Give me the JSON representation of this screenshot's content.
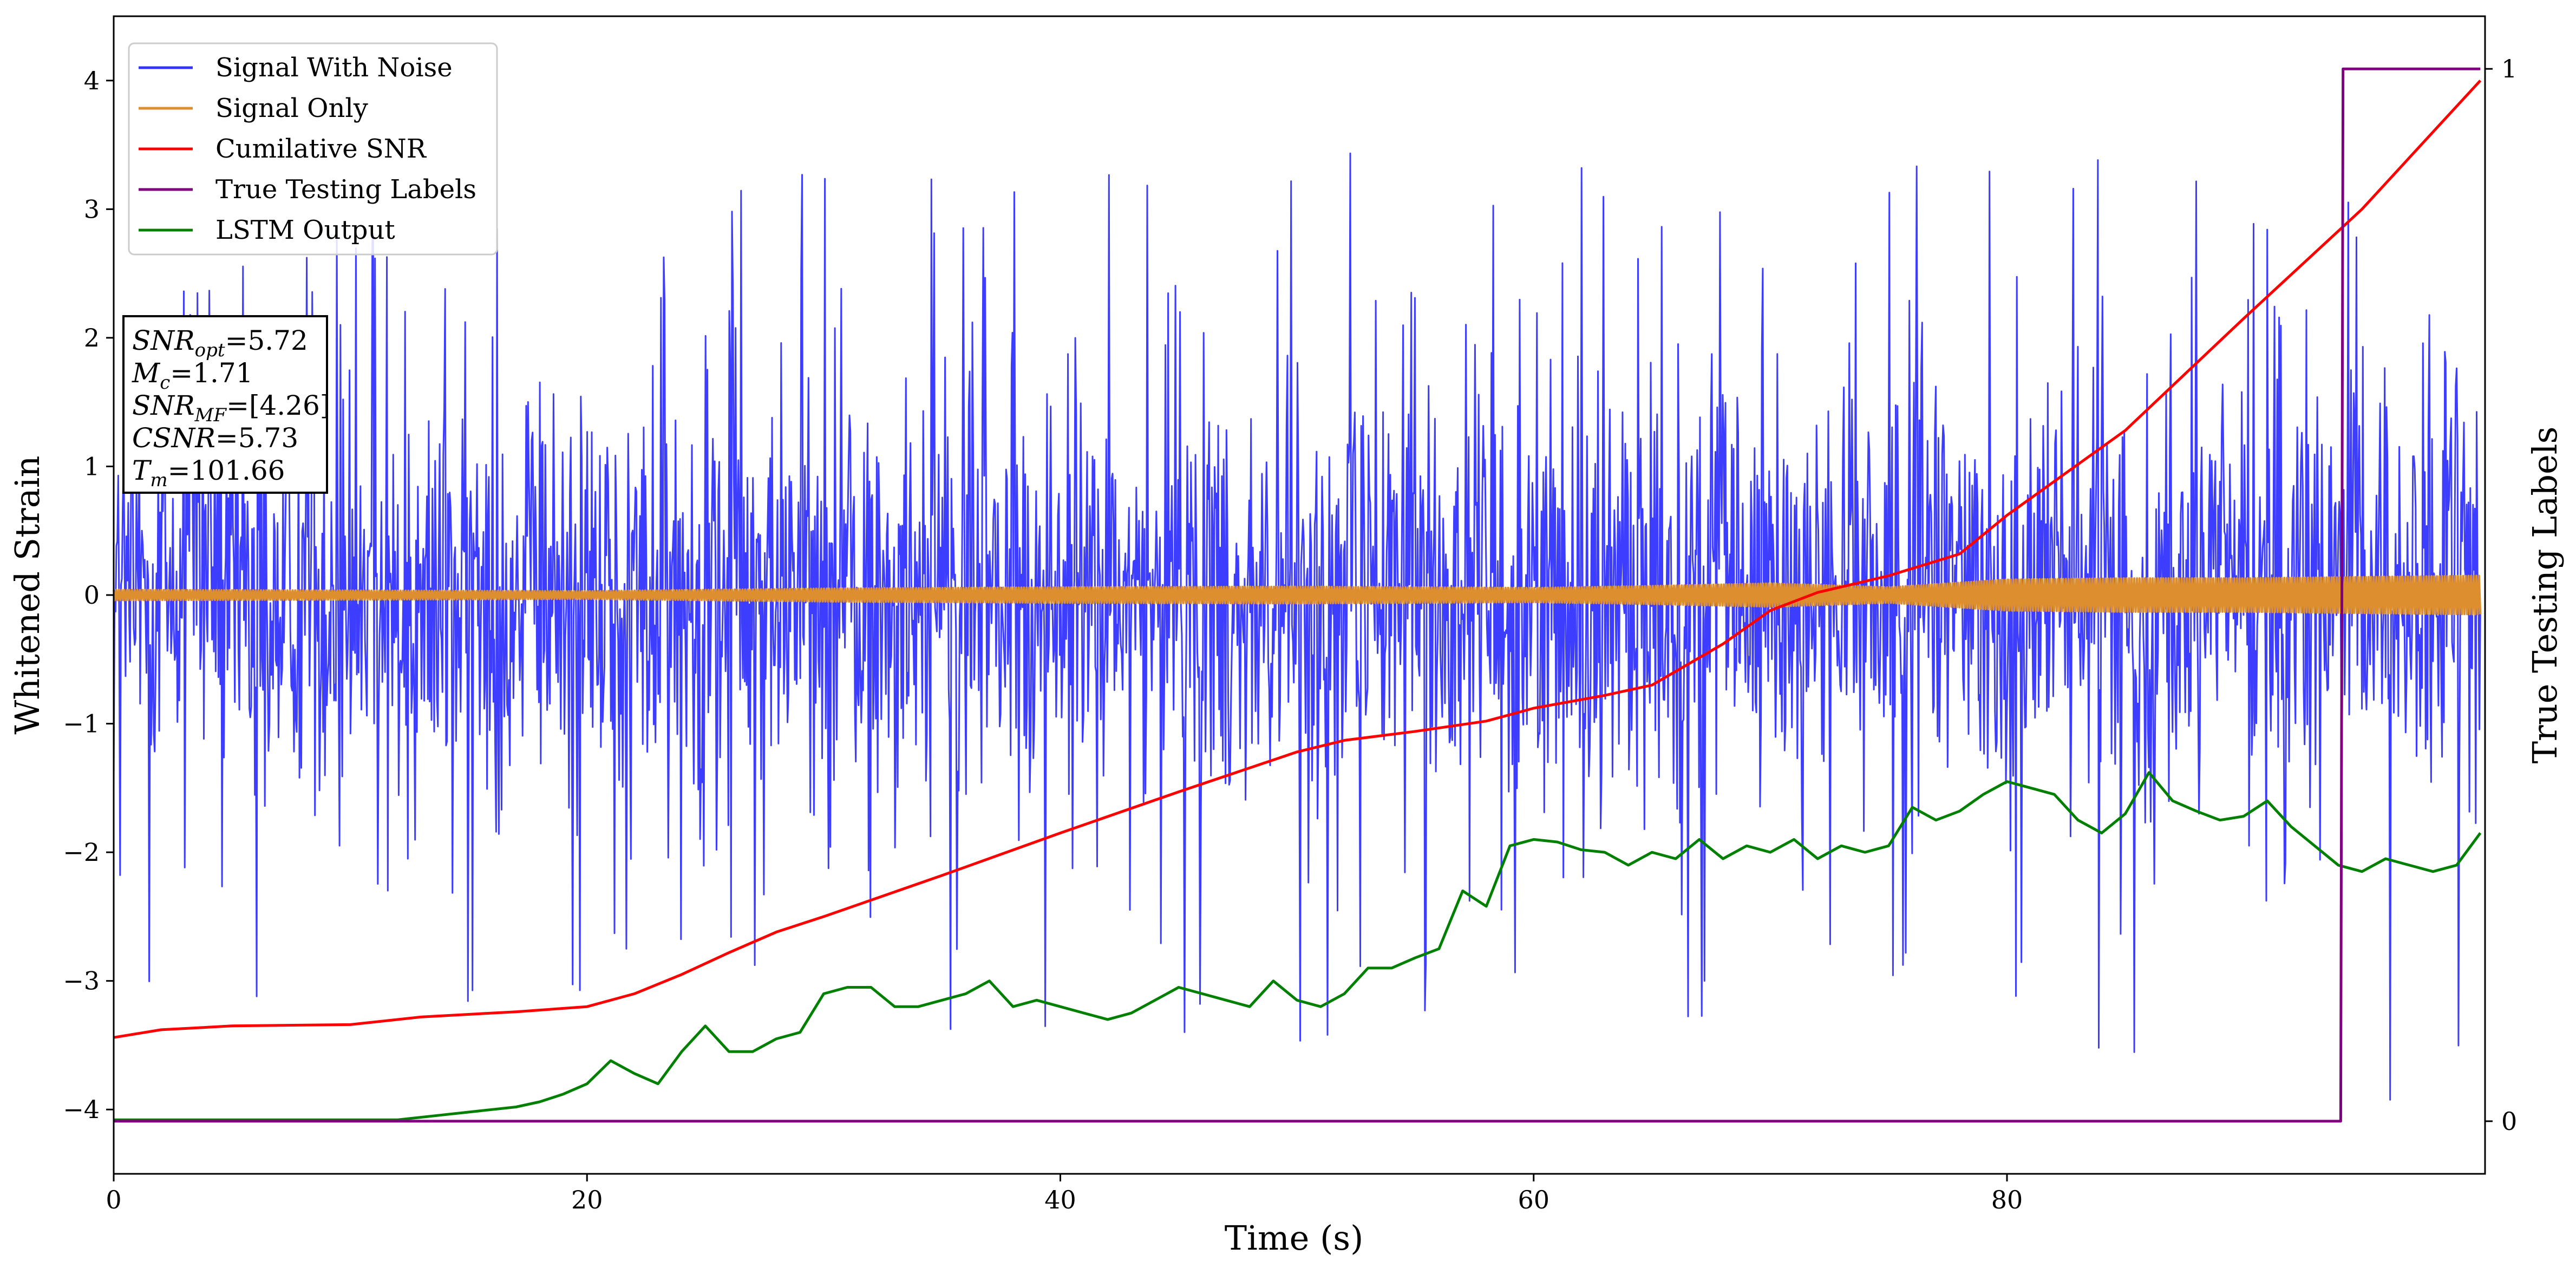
{
  "chart_data": {
    "type": "line",
    "title": "",
    "xlabel": "Time (s)",
    "ylabel": "Whitened Strain",
    "y2label": "True Testing Labels",
    "xlim": [
      0,
      100.2
    ],
    "ylim": [
      -4.5,
      4.5
    ],
    "y2lim": [
      -0.05,
      1.05
    ],
    "xticks": [
      0,
      20,
      40,
      60,
      80
    ],
    "yticks": [
      -4,
      -3,
      -2,
      -1,
      0,
      1,
      2,
      3,
      4
    ],
    "y2ticks": [
      0,
      1
    ],
    "grid": false,
    "legend_position": "upper-left",
    "series": [
      {
        "name": "Signal With Noise",
        "color": "#3333ff",
        "axis": "left",
        "description": "noisy whitened strain, roughly zero-mean, spans about -4.1 to 3.9",
        "envelope_x": [
          0,
          10,
          20,
          30,
          40,
          50,
          60,
          70,
          80,
          90,
          100
        ],
        "upper_envelope": [
          2.4,
          2.8,
          2.9,
          3.5,
          3.4,
          3.6,
          3.3,
          3.4,
          3.5,
          3.4,
          2.9
        ],
        "lower_envelope": [
          -3.2,
          -3.1,
          -3.3,
          -3.4,
          -3.5,
          -3.6,
          -3.7,
          -3.6,
          -3.5,
          -3.7,
          -4.1
        ]
      },
      {
        "name": "Signal Only",
        "color": "#dd8f30",
        "axis": "left",
        "description": "chirp signal with slowly growing amplitude",
        "amp_x": [
          0,
          20,
          30,
          40,
          50,
          60,
          65,
          70,
          75,
          80,
          85,
          90,
          95,
          100
        ],
        "amplitude": [
          0.04,
          0.03,
          0.05,
          0.06,
          0.065,
          0.055,
          0.07,
          0.09,
          0.06,
          0.12,
          0.13,
          0.13,
          0.14,
          0.15
        ]
      },
      {
        "name": "Cumilative SNR",
        "color": "#ff0000",
        "axis": "left",
        "x": [
          0,
          2,
          5,
          10,
          13,
          17,
          20,
          22,
          24,
          26,
          28,
          30,
          35,
          40,
          45,
          50,
          52,
          55,
          58,
          60,
          63,
          65,
          68,
          70,
          72,
          75,
          78,
          80,
          85,
          90,
          95,
          98,
          100
        ],
        "y": [
          -3.44,
          -3.38,
          -3.35,
          -3.34,
          -3.28,
          -3.24,
          -3.2,
          -3.1,
          -2.95,
          -2.78,
          -2.62,
          -2.5,
          -2.18,
          -1.85,
          -1.53,
          -1.22,
          -1.13,
          -1.06,
          -0.98,
          -0.88,
          -0.78,
          -0.7,
          -0.38,
          -0.12,
          0.02,
          0.15,
          0.32,
          0.62,
          1.28,
          2.15,
          3.0,
          3.6,
          4.0
        ]
      },
      {
        "name": "True Testing Labels",
        "color": "#800080",
        "axis": "right",
        "x": [
          0,
          94.1,
          94.2,
          100
        ],
        "y": [
          0,
          0,
          1,
          1
        ]
      },
      {
        "name": "LSTM Output",
        "color": "#008000",
        "axis": "left",
        "x": [
          0,
          12,
          14,
          16,
          17,
          18,
          19,
          20,
          21,
          22,
          23,
          24,
          25,
          26,
          27,
          28,
          29,
          30,
          31,
          32,
          33,
          34,
          35,
          36,
          37,
          38,
          39,
          40,
          41,
          42,
          43,
          44,
          45,
          46,
          47,
          48,
          49,
          50,
          51,
          52,
          53,
          54,
          55,
          56,
          57,
          58,
          59,
          60,
          61,
          62,
          63,
          64,
          65,
          66,
          67,
          68,
          69,
          70,
          71,
          72,
          73,
          74,
          75,
          76,
          77,
          78,
          79,
          80,
          81,
          82,
          83,
          84,
          85,
          86,
          87,
          88,
          89,
          90,
          91,
          92,
          93,
          94,
          95,
          96,
          97,
          98,
          99,
          100
        ],
        "y": [
          -4.08,
          -4.08,
          -4.04,
          -4.0,
          -3.98,
          -3.94,
          -3.88,
          -3.8,
          -3.62,
          -3.72,
          -3.8,
          -3.55,
          -3.35,
          -3.55,
          -3.55,
          -3.45,
          -3.4,
          -3.1,
          -3.05,
          -3.05,
          -3.2,
          -3.2,
          -3.15,
          -3.1,
          -3.0,
          -3.2,
          -3.15,
          -3.2,
          -3.25,
          -3.3,
          -3.25,
          -3.15,
          -3.05,
          -3.1,
          -3.15,
          -3.2,
          -3.0,
          -3.15,
          -3.2,
          -3.1,
          -2.9,
          -2.9,
          -2.82,
          -2.75,
          -2.3,
          -2.42,
          -1.95,
          -1.9,
          -1.92,
          -1.98,
          -2.0,
          -2.1,
          -2.0,
          -2.05,
          -1.9,
          -2.05,
          -1.95,
          -2.0,
          -1.9,
          -2.05,
          -1.95,
          -2.0,
          -1.95,
          -1.65,
          -1.75,
          -1.68,
          -1.55,
          -1.45,
          -1.5,
          -1.55,
          -1.75,
          -1.85,
          -1.7,
          -1.38,
          -1.6,
          -1.68,
          -1.75,
          -1.72,
          -1.6,
          -1.8,
          -1.95,
          -2.1,
          -2.15,
          -2.05,
          -2.1,
          -2.15,
          -2.1,
          -1.85
        ]
      }
    ],
    "info_box": {
      "lines": [
        {
          "base": "SNR",
          "sub": "opt",
          "rest": "=5.72"
        },
        {
          "base": "M",
          "sub": "c",
          "rest": "=1.71"
        },
        {
          "base": "SNR",
          "sub": "MF",
          "rest": "=[4.26]"
        },
        {
          "base": "CSNR",
          "sub": "",
          "rest": "=5.73"
        },
        {
          "base": "T",
          "sub": "m",
          "rest": "=101.66"
        }
      ]
    }
  }
}
